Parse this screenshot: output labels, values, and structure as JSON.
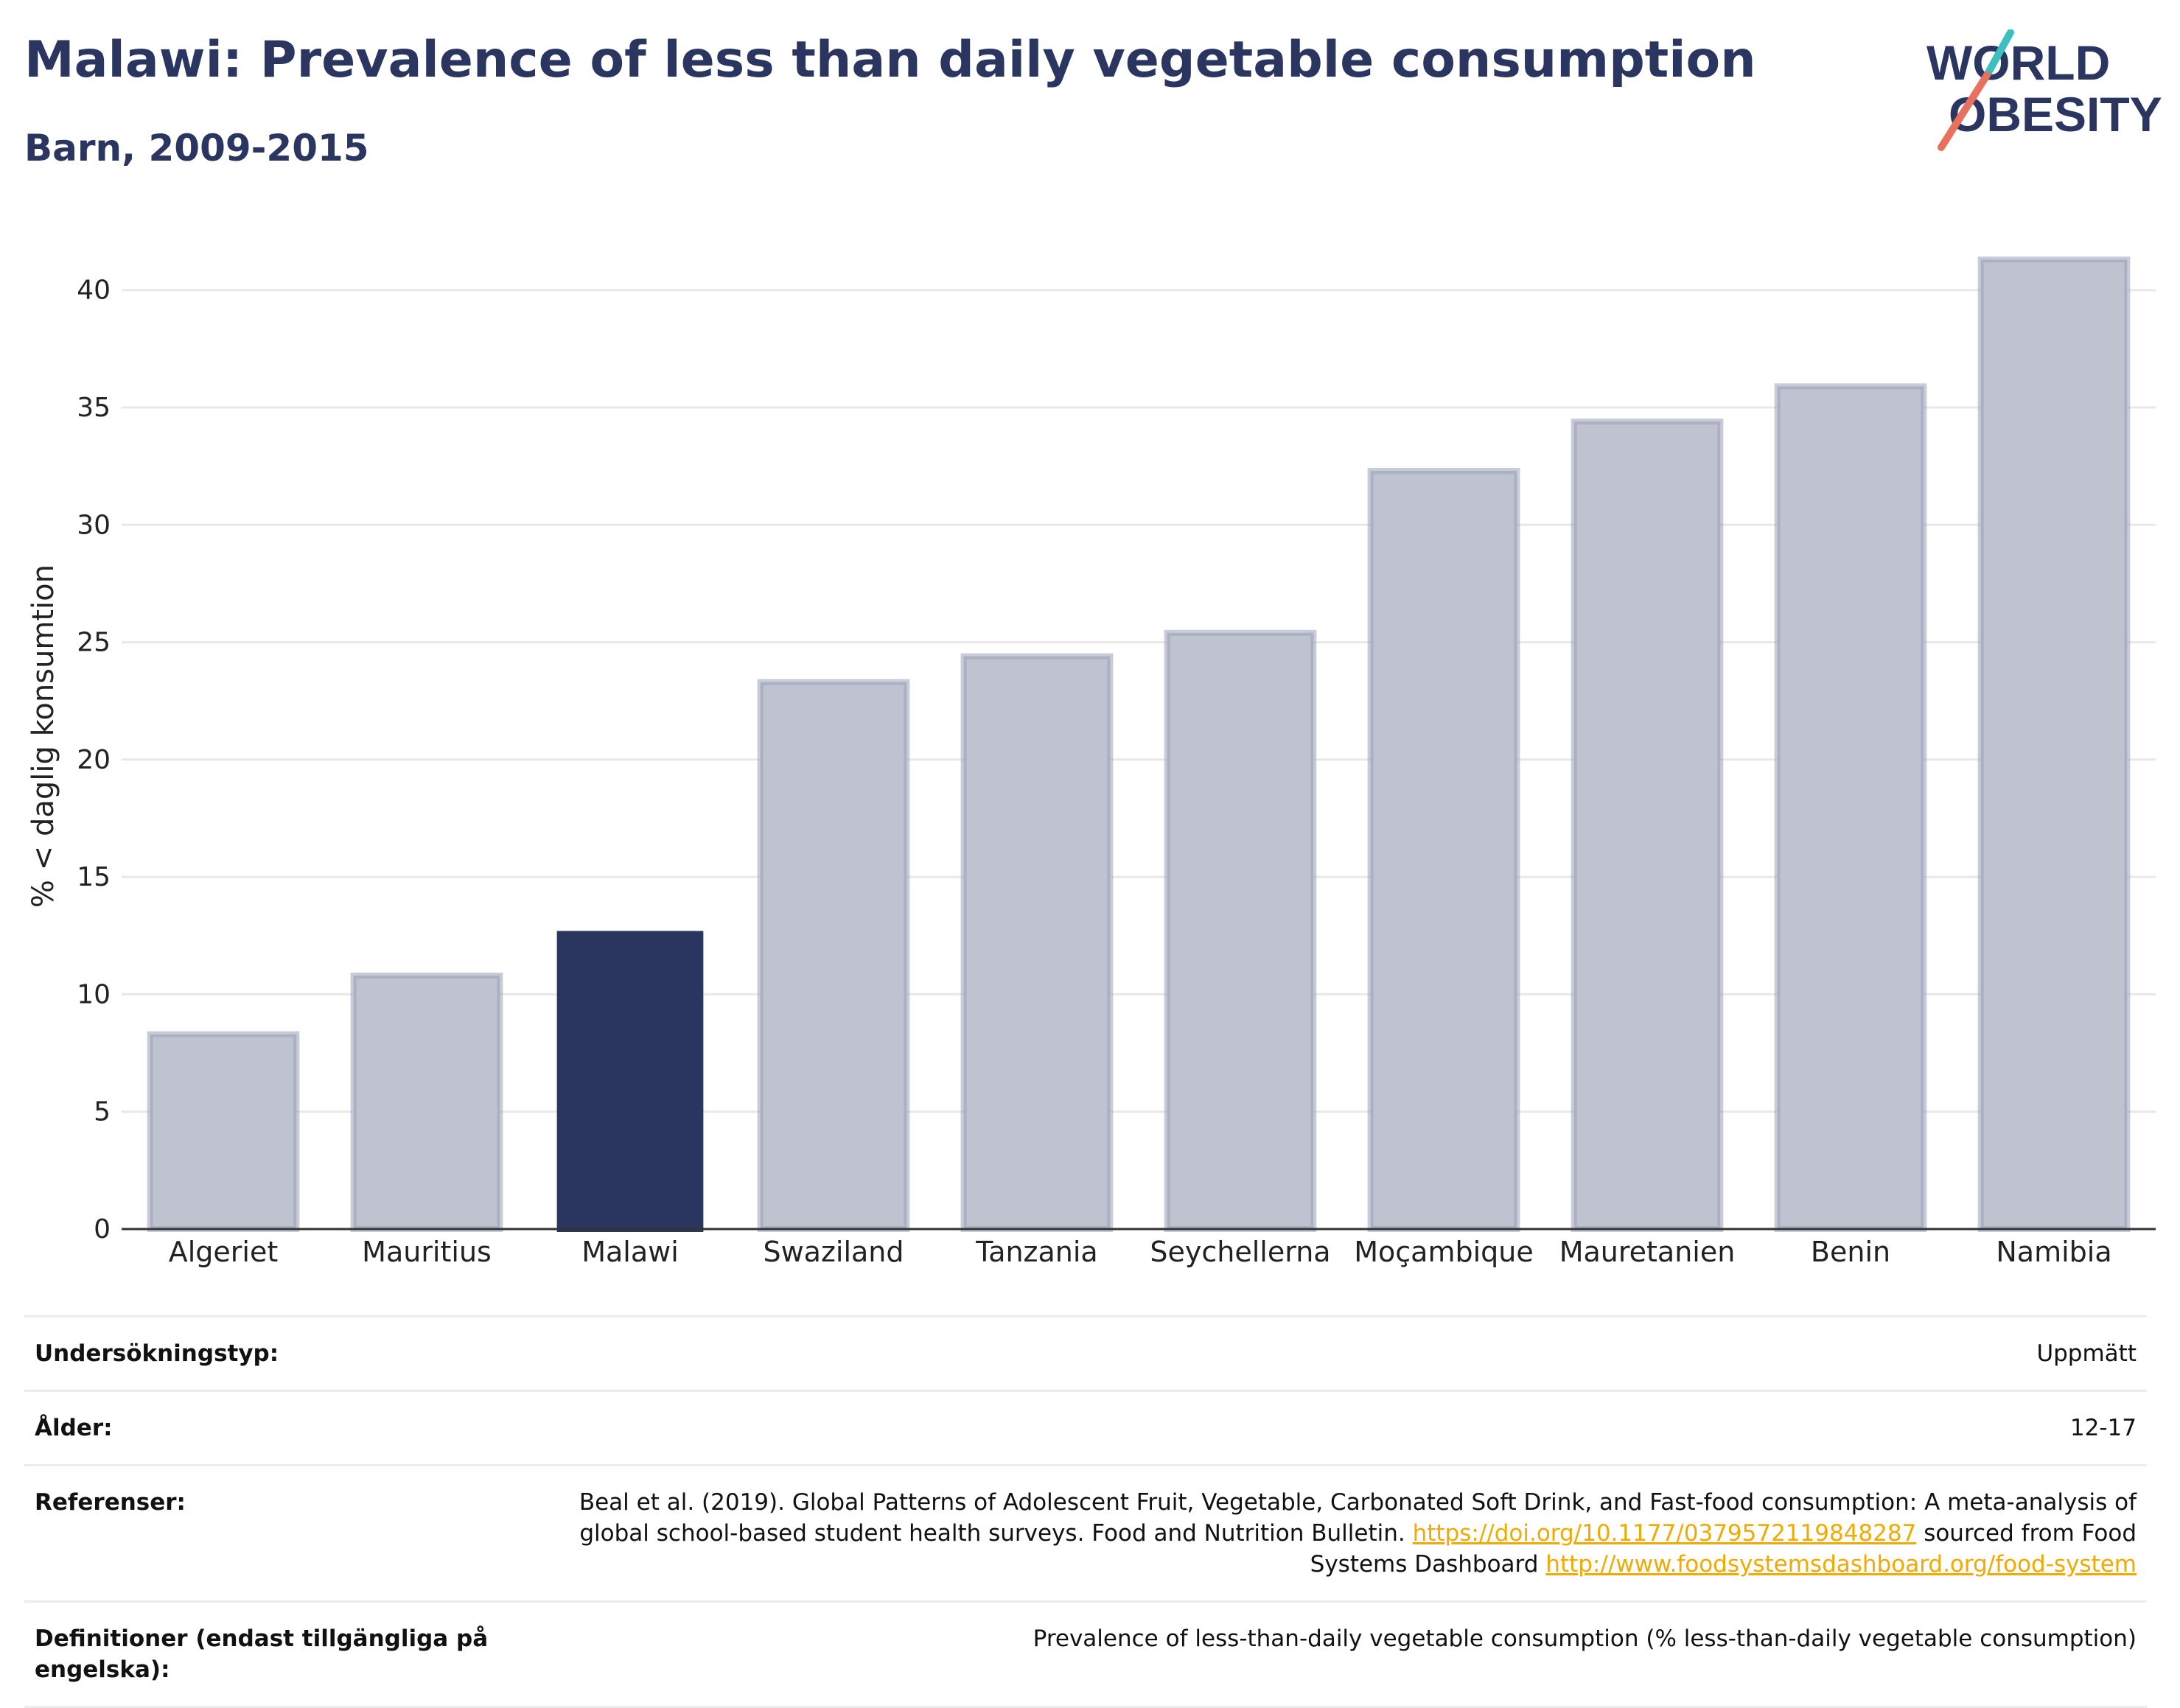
{
  "title": "Malawi: Prevalence of less than daily vegetable consumption",
  "subtitle": "Barn, 2009-2015",
  "logo": {
    "line1": "WORLD",
    "line2": "OBESITY",
    "name": "world-obesity-logo"
  },
  "colors": {
    "highlight": "#2b3660",
    "bar": "#bfc3d0",
    "bar_border": "#9aa0b8",
    "axis": "#333333",
    "grid": "#e8e8e8",
    "text": "#2b3660",
    "link": "#f2a900"
  },
  "chart_data": {
    "type": "bar",
    "categories": [
      "Algeriet",
      "Mauritius",
      "Malawi",
      "Swaziland",
      "Tanzania",
      "Seychellerna",
      "Moçambique",
      "Mauretanien",
      "Benin",
      "Namibia"
    ],
    "values": [
      8.3,
      10.8,
      12.7,
      23.3,
      24.4,
      25.4,
      32.3,
      34.4,
      35.9,
      41.3
    ],
    "highlight": "Malawi",
    "ylabel": "% < daglig konsumtion",
    "xlabel": "",
    "ylim": [
      0,
      42
    ],
    "yticks": [
      0,
      5,
      10,
      15,
      20,
      25,
      30,
      35,
      40
    ],
    "grid": true
  },
  "info": {
    "survey_label": "Undersökningstyp:",
    "survey_value": "Uppmätt",
    "age_label": "Ålder:",
    "age_value": "12-17",
    "ref_label": "Referenser:",
    "ref_text1": "Beal et al. (2019). Global Patterns of Adolescent Fruit, Vegetable, Carbonated Soft Drink, and Fast-food consumption: A meta-analysis of global school-based student health surveys. Food and Nutrition Bulletin.",
    "ref_link1": "https://doi.org/10.1177/0379572119848287",
    "ref_text2": "sourced from Food Systems Dashboard",
    "ref_link2": "http://www.foodsystemsdashboard.org/food-system",
    "def_label": "Definitioner (endast tillgängliga på engelska):",
    "def_value": "Prevalence of less-than-daily vegetable consumption (% less-than-daily vegetable consumption)"
  }
}
